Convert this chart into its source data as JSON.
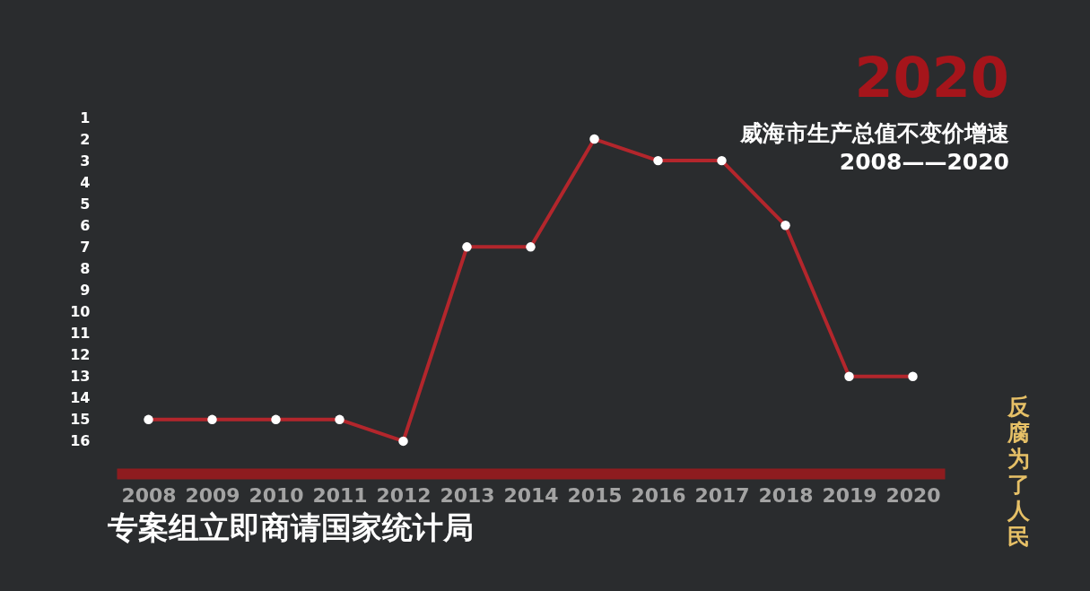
{
  "chart_data": {
    "type": "line",
    "title": "2020",
    "subtitle": "威海市生产总值不变价增速\n2008——2020",
    "categories": [
      "2008",
      "2009",
      "2010",
      "2011",
      "2012",
      "2013",
      "2014",
      "2015",
      "2016",
      "2017",
      "2018",
      "2019",
      "2020"
    ],
    "values": [
      15,
      15,
      15,
      15,
      16,
      7,
      7,
      2,
      3,
      3,
      6,
      13,
      13
    ],
    "color": "#b3262c",
    "marker": "circle",
    "line_style": "solid",
    "ylim": [
      17.5,
      1
    ],
    "yticks": [
      1,
      2,
      3,
      4,
      5,
      6,
      7,
      8,
      9,
      10,
      11,
      12,
      13,
      14,
      15,
      16
    ],
    "annotations": [
      "专案组立即商请国家统计局",
      "反腐为了人民"
    ]
  }
}
